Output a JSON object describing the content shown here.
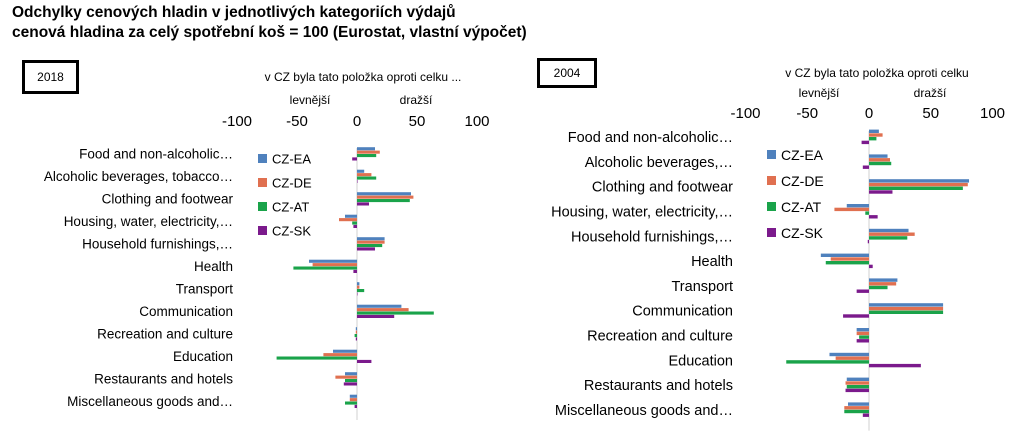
{
  "title_line1": "Odchylky cenových hladin v jednotlivých kategoriích výdajů",
  "title_line2": "cenová hladina za celý spotřební koš = 100 (Eurostat, vlastní výpočet)",
  "colors": {
    "CZ-EA": "#4f81bd",
    "CZ-DE": "#e07050",
    "CZ-AT": "#1aa34a",
    "CZ-SK": "#7b1a8c"
  },
  "chart_data": [
    {
      "type": "bar",
      "year_label": "2018",
      "title": "v CZ byla tato položka oproti celku ...",
      "left_label": "levnější",
      "right_label": "dražší",
      "xlim": [
        -100,
        100
      ],
      "xticks": [
        -100,
        -50,
        0,
        50,
        100
      ],
      "categories": [
        "Food and non-alcoholic…",
        "Alcoholic beverages, tobacco…",
        "Clothing and footwear",
        "Housing, water, electricity,…",
        "Household furnishings,…",
        "Health",
        "Transport",
        "Communication",
        "Recreation and culture",
        "Education",
        "Restaurants and hotels",
        "Miscellaneous goods and…"
      ],
      "series": [
        {
          "name": "CZ-EA",
          "values": [
            15,
            6,
            45,
            -10,
            23,
            -40,
            2,
            37,
            -1,
            -20,
            -10,
            -6
          ]
        },
        {
          "name": "CZ-DE",
          "values": [
            19,
            12,
            47,
            -15,
            23,
            -37,
            2,
            43,
            -1,
            -28,
            -18,
            -6
          ]
        },
        {
          "name": "CZ-AT",
          "values": [
            16,
            16,
            44,
            -4,
            21,
            -53,
            6,
            64,
            -2,
            -67,
            -10,
            -10
          ]
        },
        {
          "name": "CZ-SK",
          "values": [
            -4,
            0,
            10,
            -3,
            15,
            -3,
            0,
            31,
            -1,
            12,
            -11,
            -2
          ]
        }
      ]
    },
    {
      "type": "bar",
      "year_label": "2004",
      "title": "v CZ byla tato položka oproti celku",
      "left_label": "levnější",
      "right_label": "dražší",
      "xlim": [
        -100,
        100
      ],
      "xticks": [
        -100,
        -50,
        0,
        50,
        100
      ],
      "categories": [
        "Food and non-alcoholic…",
        "Alcoholic beverages,…",
        "Clothing and footwear",
        "Housing, water, electricity,…",
        "Household furnishings,…",
        "Health",
        "Transport",
        "Communication",
        "Recreation and culture",
        "Education",
        "Restaurants and hotels",
        "Miscellaneous goods and…"
      ],
      "series": [
        {
          "name": "CZ-EA",
          "values": [
            8,
            15,
            81,
            -18,
            32,
            -39,
            23,
            60,
            -10,
            -32,
            -18,
            -17
          ]
        },
        {
          "name": "CZ-DE",
          "values": [
            11,
            17,
            80,
            -28,
            37,
            -31,
            22,
            60,
            -10,
            -27,
            -19,
            -20
          ]
        },
        {
          "name": "CZ-AT",
          "values": [
            6,
            18,
            76,
            -3,
            31,
            -35,
            15,
            60,
            -8,
            -67,
            -18,
            -20
          ]
        },
        {
          "name": "CZ-SK",
          "values": [
            -6,
            -5,
            19,
            7,
            -1,
            3,
            -10,
            -21,
            -10,
            42,
            -19,
            -5
          ]
        }
      ]
    }
  ]
}
